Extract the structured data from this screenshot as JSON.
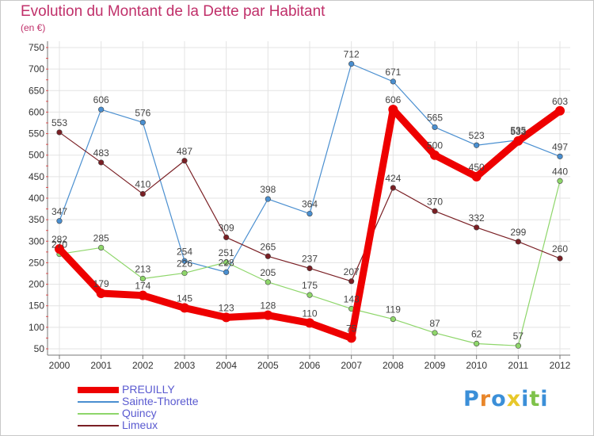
{
  "chart_data": {
    "type": "line",
    "title": "Evolution du Montant de la Dette par Habitant",
    "subtitle": "(en €)",
    "xlabel": "",
    "ylabel": "",
    "categories": [
      "2000",
      "2001",
      "2002",
      "2003",
      "2004",
      "2005",
      "2006",
      "2007",
      "2008",
      "2009",
      "2010",
      "2011",
      "2012"
    ],
    "yticks": [
      50,
      100,
      150,
      200,
      250,
      300,
      350,
      400,
      450,
      500,
      550,
      600,
      650,
      700,
      750
    ],
    "ylim": [
      50,
      750
    ],
    "grid": true,
    "legend": "bottom-left",
    "series": [
      {
        "name": "PREUILLY",
        "color": "#ee0000",
        "highlight": true,
        "values": [
          282,
          179,
          174,
          145,
          123,
          128,
          110,
          75,
          606,
          500,
          450,
          533,
          603
        ]
      },
      {
        "name": "Sainte-Thorette",
        "color": "#4a8fd0",
        "highlight": false,
        "values": [
          347,
          606,
          576,
          254,
          228,
          398,
          364,
          712,
          671,
          565,
          523,
          535,
          497
        ]
      },
      {
        "name": "Quincy",
        "color": "#8ed66a",
        "highlight": false,
        "values": [
          270,
          285,
          213,
          226,
          251,
          205,
          175,
          143,
          119,
          87,
          62,
          57,
          440
        ]
      },
      {
        "name": "Limeux",
        "color": "#7a1f24",
        "highlight": false,
        "values": [
          553,
          483,
          410,
          487,
          309,
          265,
          237,
          207,
          424,
          370,
          332,
          299,
          260
        ]
      }
    ]
  },
  "logo": {
    "letters": [
      "P",
      "r",
      "o",
      "x",
      "i",
      "t",
      "i"
    ],
    "colors": [
      "#3b8fd8",
      "#e8862a",
      "#3b8fd8",
      "#e8c82a",
      "#3b8fd8",
      "#7fc24a",
      "#3b8fd8"
    ]
  }
}
